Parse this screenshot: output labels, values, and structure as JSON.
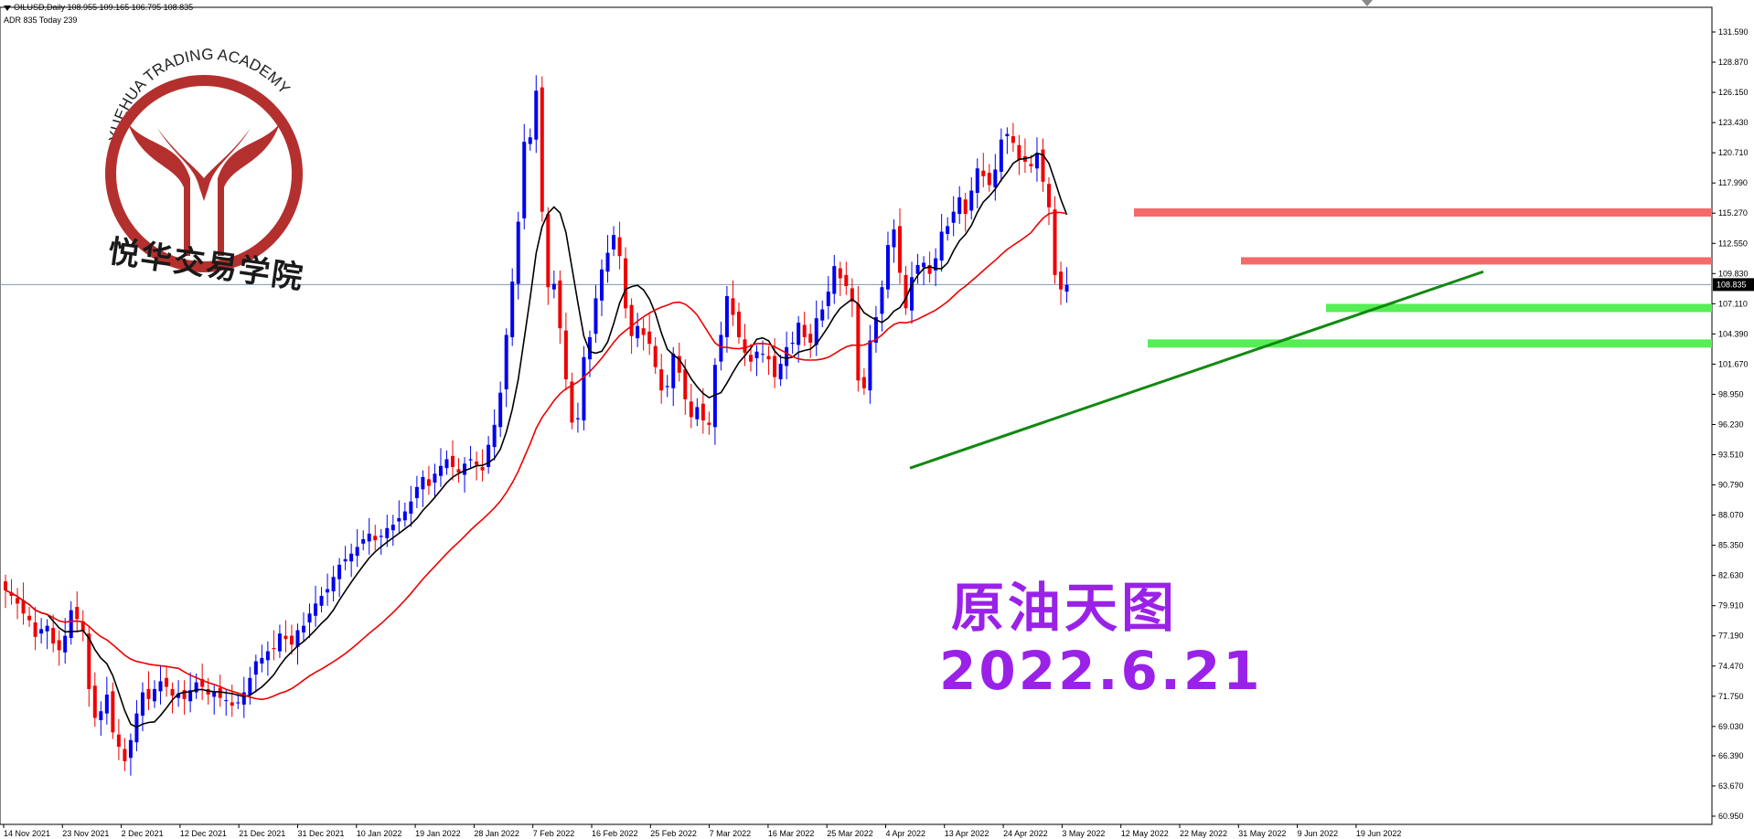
{
  "header": {
    "symbol_line": "OILUSD,Daily  108.955 109.165 106.795 108.835",
    "stats_line": "ADR 835  Today 239"
  },
  "overlay": {
    "title_cn": "原油天图",
    "date": "2022.6.21"
  },
  "logo": {
    "arc_text": "YUEHUA TRADING ACADEMY",
    "cn_text": "悦华交易学院"
  },
  "colors": {
    "bull": "#0000ee",
    "bear": "#ee0000",
    "sma_fast": "#000000",
    "sma_slow": "#ee0000",
    "resistance": "#f46a6a",
    "support": "#55ee55",
    "trendline": "#118811",
    "overlay_text": "#9a22e8",
    "price_line": "#7a9ab0"
  },
  "chart_data": {
    "type": "candlestick",
    "symbol": "OILUSD",
    "timeframe": "Daily",
    "last_price": 108.835,
    "ohlc_current": {
      "open": 108.955,
      "high": 109.165,
      "low": 106.795,
      "close": 108.835
    },
    "ylim": [
      60.91,
      132.5
    ],
    "y_ticks": [
      "131.590",
      "128.870",
      "126.150",
      "123.430",
      "120.710",
      "117.990",
      "115.270",
      "112.550",
      "109.830",
      "107.110",
      "104.390",
      "101.670",
      "98.950",
      "96.230",
      "93.510",
      "90.790",
      "88.070",
      "85.350",
      "82.630",
      "79.910",
      "77.190",
      "74.470",
      "71.750",
      "69.030",
      "66.390",
      "63.670",
      "60.950"
    ],
    "x_ticks": [
      "14 Nov 2021",
      "23 Nov 2021",
      "2 Dec 2021",
      "12 Dec 2021",
      "21 Dec 2021",
      "31 Dec 2021",
      "10 Jan 2022",
      "19 Jan 2022",
      "28 Jan 2022",
      "7 Feb 2022",
      "16 Feb 2022",
      "25 Feb 2022",
      "7 Mar 2022",
      "16 Mar 2022",
      "25 Mar 2022",
      "4 Apr 2022",
      "13 Apr 2022",
      "24 Apr 2022",
      "3 May 2022",
      "12 May 2022",
      "22 May 2022",
      "31 May 2022",
      "9 Jun 2022",
      "19 Jun 2022"
    ],
    "closes": [
      81.3,
      80.8,
      80.1,
      79.2,
      78.6,
      77.1,
      77.8,
      78.1,
      76.5,
      75.9,
      77.2,
      79.5,
      78.7,
      77.6,
      72.4,
      69.8,
      70.4,
      71.9,
      68.5,
      67.2,
      65.9,
      67.8,
      70.2,
      72.1,
      71.5,
      72.4,
      73.1,
      72.6,
      71.8,
      72.0,
      71.5,
      72.3,
      73.0,
      72.6,
      71.9,
      72.2,
      71.6,
      71.4,
      70.9,
      71.2,
      72.1,
      73.4,
      74.9,
      75.2,
      75.8,
      76.0,
      77.4,
      76.9,
      76.4,
      77.7,
      78.1,
      79.2,
      80.1,
      80.8,
      81.4,
      82.5,
      83.6,
      84.1,
      84.6,
      85.2,
      85.9,
      86.4,
      85.8,
      86.2,
      86.9,
      87.2,
      87.8,
      88.4,
      89.3,
      90.6,
      91.5,
      90.7,
      91.8,
      92.5,
      93.1,
      92.4,
      91.9,
      92.7,
      93.1,
      92.6,
      92.1,
      94.4,
      96.2,
      99.1,
      104.3,
      109.1,
      114.5,
      121.7,
      122.1,
      126.3,
      115.4,
      108.6,
      108.9,
      104.9,
      100.3,
      96.4,
      96.8,
      102.3,
      104.1,
      107.6,
      110.2,
      111.7,
      113.3,
      111.4,
      106.7,
      104.2,
      105.1,
      104.3,
      103.5,
      101.4,
      99.3,
      99.7,
      102.6,
      100.9,
      98.5,
      96.9,
      97.8,
      96.6,
      96.2,
      101.6,
      104.3,
      107.8,
      106.1,
      104.1,
      102.7,
      101.9,
      102.8,
      102.6,
      102.1,
      100.5,
      101.7,
      103.2,
      103.6,
      105.4,
      104.1,
      103.6,
      105.8,
      106.6,
      108.2,
      110.5,
      109.4,
      108.7,
      107.3,
      100.2,
      99.5,
      103.8,
      105.9,
      108.6,
      112.4,
      113.8,
      109.9,
      106.7,
      109.5,
      110.6,
      110.8,
      109.8,
      111.2,
      113.6,
      114.1,
      115.4,
      116.7,
      115.2,
      117.3,
      119.3,
      118.6,
      117.8,
      119.2,
      121.9,
      122.4,
      121.6,
      120.1,
      119.9,
      119.5,
      120.7,
      118.1,
      115.8,
      109.7,
      108.4,
      108.8
    ]
  }
}
